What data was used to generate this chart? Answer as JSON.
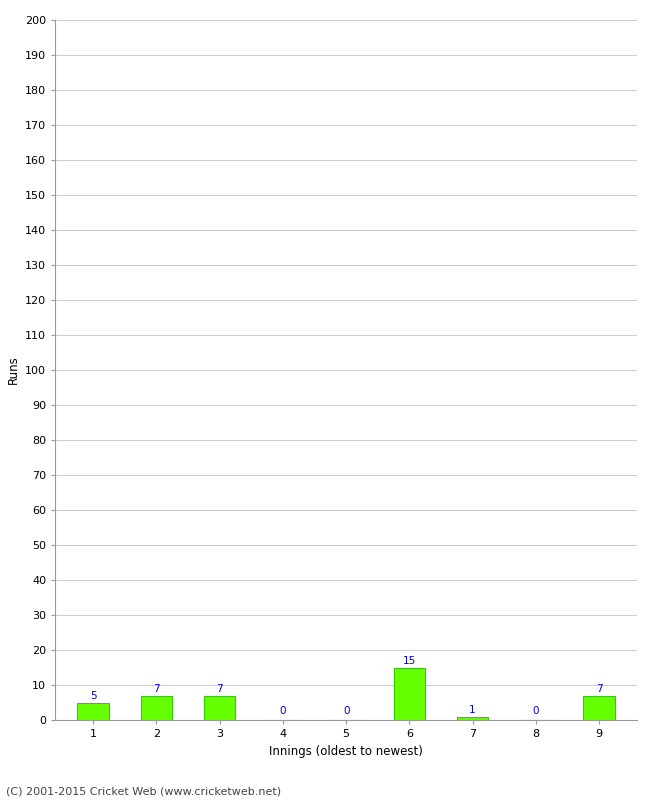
{
  "xlabel": "Innings (oldest to newest)",
  "ylabel": "Runs",
  "categories": [
    "1",
    "2",
    "3",
    "4",
    "5",
    "6",
    "7",
    "8",
    "9"
  ],
  "values": [
    5,
    7,
    7,
    0,
    0,
    15,
    1,
    0,
    7
  ],
  "bar_color": "#66ff00",
  "bar_edge_color": "#33cc00",
  "label_color": "#0000cc",
  "ylim": [
    0,
    200
  ],
  "yticks": [
    0,
    10,
    20,
    30,
    40,
    50,
    60,
    70,
    80,
    90,
    100,
    110,
    120,
    130,
    140,
    150,
    160,
    170,
    180,
    190,
    200
  ],
  "background_color": "#ffffff",
  "grid_color": "#cccccc",
  "footer": "(C) 2001-2015 Cricket Web (www.cricketweb.net)",
  "label_fontsize": 7.5,
  "axis_tick_fontsize": 8,
  "axis_label_fontsize": 8.5,
  "footer_fontsize": 8
}
